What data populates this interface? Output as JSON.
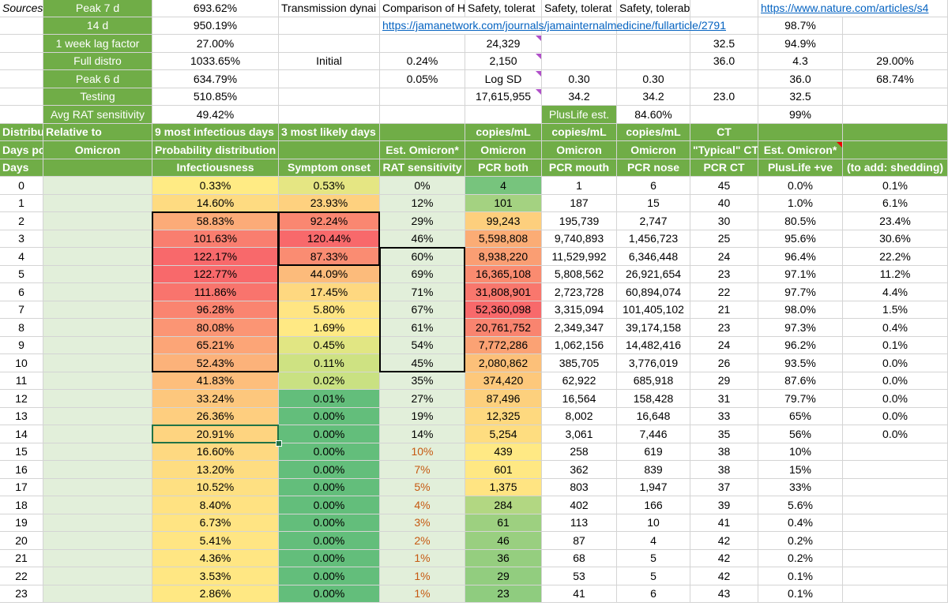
{
  "columns_note": "spreadsheet cells",
  "top": [
    {
      "a": "Sources",
      "b": "Peak 7 d",
      "c": "693.62%",
      "d": "Transmission dynai",
      "e": "Comparison of H",
      "f": "Safety, tolerat",
      "g": "Safety, tolerat",
      "h": "Safety, tolerability and viral k",
      "j": "https://www.nature.com/articles/s4"
    },
    {
      "b": "14 d",
      "c": "950.19%",
      "e": "https://jamanetwork.com/journals/jamainternalmedicine/fullarticle/2791",
      "j": "98.7%"
    },
    {
      "b": "1 week lag factor",
      "c": "27.00%",
      "f": "24,329",
      "i": "32.5",
      "j": "94.9%"
    },
    {
      "b": "Full distro",
      "c": "1033.65%",
      "d": "Initial",
      "e": "0.24%",
      "f": "2,150",
      "i": "36.0",
      "j": "4.3",
      "k": "29.00%"
    },
    {
      "b": "Peak 6 d",
      "c": "634.79%",
      "e": "0.05%",
      "f": "Log SD",
      "g": "0.30",
      "h": "0.30",
      "j": "36.0",
      "k": "68.74%"
    },
    {
      "b": "Testing",
      "c": "510.85%",
      "f": "17,615,955",
      "g": "34.2",
      "h": "34.2",
      "i": "23.0",
      "j": "32.5"
    },
    {
      "b": "Avg RAT sensitivity",
      "c": "49.42%",
      "g": "PlusLife est.",
      "h": "84.60%",
      "j": "99%"
    }
  ],
  "header1": {
    "a": "Distribu",
    "b": "Relative to",
    "c": "9 most infectious days",
    "d": "3 most likely days",
    "f": "copies/mL",
    "g": "copies/mL",
    "h": "copies/mL",
    "i": "CT"
  },
  "header2": {
    "a": "Days pc",
    "b": "Omicron",
    "c": "Probability distribution function",
    "e": "Est. Omicron*",
    "f": "Omicron",
    "g": "Omicron",
    "h": "Omicron",
    "i": "\"Typical\" CT",
    "j": "Est. Omicron*"
  },
  "header3": {
    "a": "Days",
    "c": "Infectiousness",
    "d": "Symptom onset",
    "e": "RAT sensitivity",
    "f": "PCR both",
    "g": "PCR mouth",
    "h": "PCR nose",
    "i": "PCR CT",
    "j": "PlusLife +ve",
    "k": "(to add: shedding)"
  },
  "rows": [
    {
      "day": "0",
      "inf": "0.33%",
      "sym": "0.53%",
      "rat": "0%",
      "pcr": "4",
      "mouth": "1",
      "nose": "6",
      "ct": "45",
      "plus": "0.0%",
      "shed": "0.1%"
    },
    {
      "day": "1",
      "inf": "14.60%",
      "sym": "23.93%",
      "rat": "12%",
      "pcr": "101",
      "mouth": "187",
      "nose": "15",
      "ct": "40",
      "plus": "1.0%",
      "shed": "6.1%"
    },
    {
      "day": "2",
      "inf": "58.83%",
      "sym": "92.24%",
      "rat": "29%",
      "pcr": "99,243",
      "mouth": "195,739",
      "nose": "2,747",
      "ct": "30",
      "plus": "80.5%",
      "shed": "23.4%"
    },
    {
      "day": "3",
      "inf": "101.63%",
      "sym": "120.44%",
      "rat": "46%",
      "pcr": "5,598,808",
      "mouth": "9,740,893",
      "nose": "1,456,723",
      "ct": "25",
      "plus": "95.6%",
      "shed": "30.6%"
    },
    {
      "day": "4",
      "inf": "122.17%",
      "sym": "87.33%",
      "rat": "60%",
      "pcr": "8,938,220",
      "mouth": "11,529,992",
      "nose": "6,346,448",
      "ct": "24",
      "plus": "96.4%",
      "shed": "22.2%"
    },
    {
      "day": "5",
      "inf": "122.77%",
      "sym": "44.09%",
      "rat": "69%",
      "pcr": "16,365,108",
      "mouth": "5,808,562",
      "nose": "26,921,654",
      "ct": "23",
      "plus": "97.1%",
      "shed": "11.2%"
    },
    {
      "day": "6",
      "inf": "111.86%",
      "sym": "17.45%",
      "rat": "71%",
      "pcr": "31,808,901",
      "mouth": "2,723,728",
      "nose": "60,894,074",
      "ct": "22",
      "plus": "97.7%",
      "shed": "4.4%"
    },
    {
      "day": "7",
      "inf": "96.28%",
      "sym": "5.80%",
      "rat": "67%",
      "pcr": "52,360,098",
      "mouth": "3,315,094",
      "nose": "101,405,102",
      "ct": "21",
      "plus": "98.0%",
      "shed": "1.5%"
    },
    {
      "day": "8",
      "inf": "80.08%",
      "sym": "1.69%",
      "rat": "61%",
      "pcr": "20,761,752",
      "mouth": "2,349,347",
      "nose": "39,174,158",
      "ct": "23",
      "plus": "97.3%",
      "shed": "0.4%"
    },
    {
      "day": "9",
      "inf": "65.21%",
      "sym": "0.45%",
      "rat": "54%",
      "pcr": "7,772,286",
      "mouth": "1,062,156",
      "nose": "14,482,416",
      "ct": "24",
      "plus": "96.2%",
      "shed": "0.1%"
    },
    {
      "day": "10",
      "inf": "52.43%",
      "sym": "0.11%",
      "rat": "45%",
      "pcr": "2,080,862",
      "mouth": "385,705",
      "nose": "3,776,019",
      "ct": "26",
      "plus": "93.5%",
      "shed": "0.0%"
    },
    {
      "day": "11",
      "inf": "41.83%",
      "sym": "0.02%",
      "rat": "35%",
      "pcr": "374,420",
      "mouth": "62,922",
      "nose": "685,918",
      "ct": "29",
      "plus": "87.6%",
      "shed": "0.0%"
    },
    {
      "day": "12",
      "inf": "33.24%",
      "sym": "0.01%",
      "rat": "27%",
      "pcr": "87,496",
      "mouth": "16,564",
      "nose": "158,428",
      "ct": "31",
      "plus": "79.7%",
      "shed": "0.0%"
    },
    {
      "day": "13",
      "inf": "26.36%",
      "sym": "0.00%",
      "rat": "19%",
      "pcr": "12,325",
      "mouth": "8,002",
      "nose": "16,648",
      "ct": "33",
      "plus": "65%",
      "shed": "0.0%"
    },
    {
      "day": "14",
      "inf": "20.91%",
      "sym": "0.00%",
      "rat": "14%",
      "pcr": "5,254",
      "mouth": "3,061",
      "nose": "7,446",
      "ct": "35",
      "plus": "56%",
      "shed": "0.0%"
    },
    {
      "day": "15",
      "inf": "16.60%",
      "sym": "0.00%",
      "rat": "10%",
      "pcr": "439",
      "mouth": "258",
      "nose": "619",
      "ct": "38",
      "plus": "10%",
      "shed": ""
    },
    {
      "day": "16",
      "inf": "13.20%",
      "sym": "0.00%",
      "rat": "7%",
      "pcr": "601",
      "mouth": "362",
      "nose": "839",
      "ct": "38",
      "plus": "15%",
      "shed": ""
    },
    {
      "day": "17",
      "inf": "10.52%",
      "sym": "0.00%",
      "rat": "5%",
      "pcr": "1,375",
      "mouth": "803",
      "nose": "1,947",
      "ct": "37",
      "plus": "33%",
      "shed": ""
    },
    {
      "day": "18",
      "inf": "8.40%",
      "sym": "0.00%",
      "rat": "4%",
      "pcr": "284",
      "mouth": "402",
      "nose": "166",
      "ct": "39",
      "plus": "5.6%",
      "shed": ""
    },
    {
      "day": "19",
      "inf": "6.73%",
      "sym": "0.00%",
      "rat": "3%",
      "pcr": "61",
      "mouth": "113",
      "nose": "10",
      "ct": "41",
      "plus": "0.4%",
      "shed": ""
    },
    {
      "day": "20",
      "inf": "5.41%",
      "sym": "0.00%",
      "rat": "2%",
      "pcr": "46",
      "mouth": "87",
      "nose": "4",
      "ct": "42",
      "plus": "0.2%",
      "shed": ""
    },
    {
      "day": "21",
      "inf": "4.36%",
      "sym": "0.00%",
      "rat": "1%",
      "pcr": "36",
      "mouth": "68",
      "nose": "5",
      "ct": "42",
      "plus": "0.2%",
      "shed": ""
    },
    {
      "day": "22",
      "inf": "3.53%",
      "sym": "0.00%",
      "rat": "1%",
      "pcr": "29",
      "mouth": "53",
      "nose": "5",
      "ct": "42",
      "plus": "0.1%",
      "shed": ""
    },
    {
      "day": "23",
      "inf": "2.86%",
      "sym": "0.00%",
      "rat": "1%",
      "pcr": "23",
      "mouth": "41",
      "nose": "6",
      "ct": "43",
      "plus": "0.1%",
      "shed": ""
    }
  ],
  "colors": {
    "header_green": "#70ad47",
    "light_green": "#e2efda",
    "box_border": "#000000",
    "selection": "#217346",
    "comment_marker": "#b04fc9",
    "link": "#0563c1",
    "muted_orange": "#c65911"
  }
}
